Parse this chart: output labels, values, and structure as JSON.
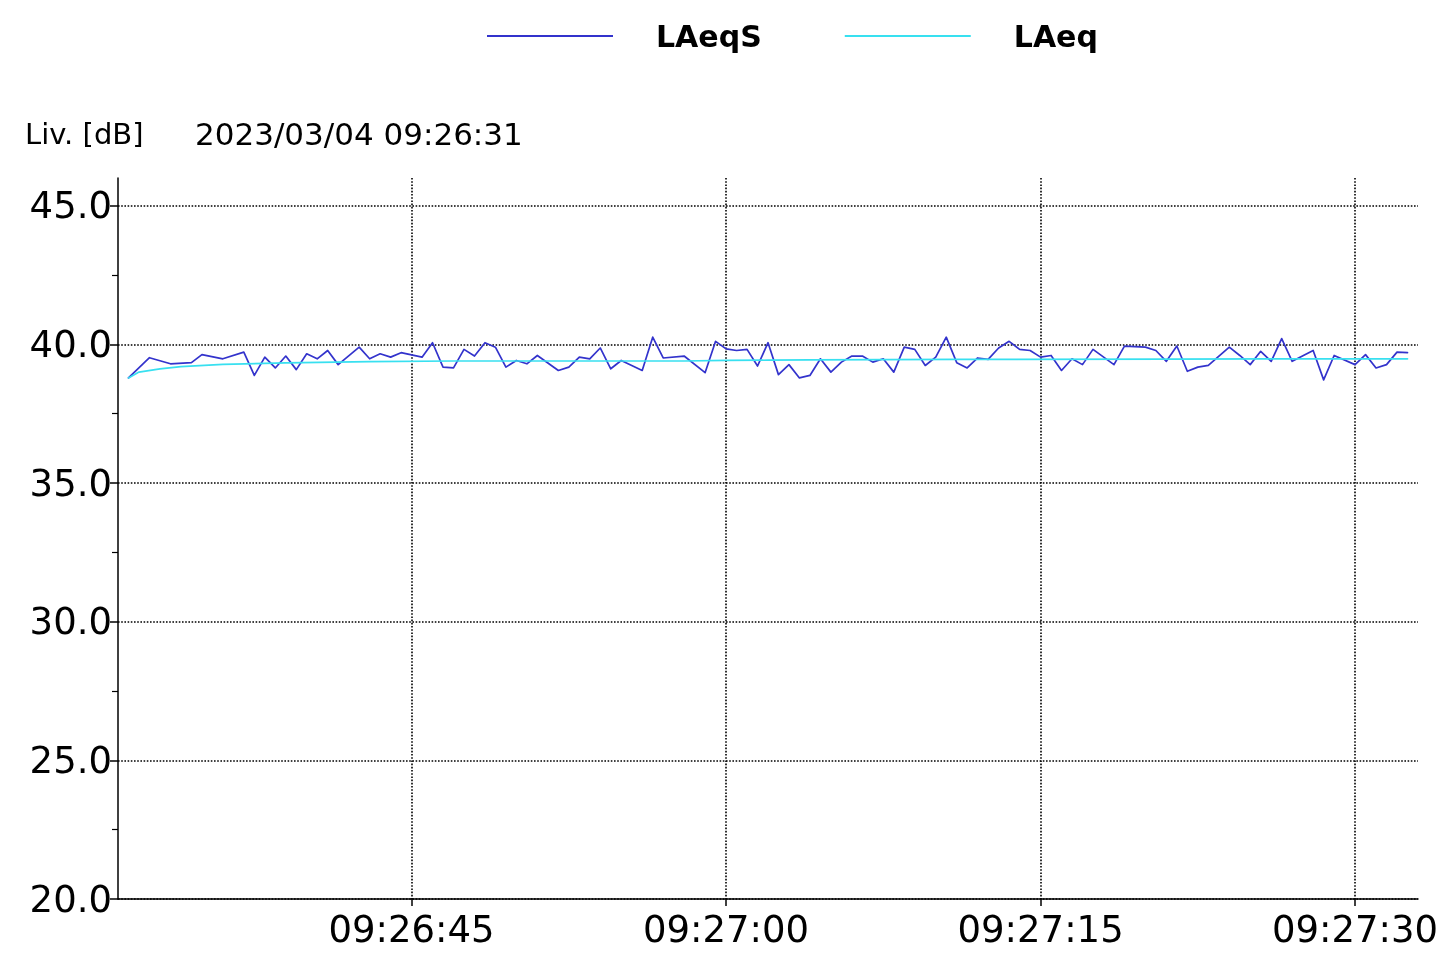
{
  "chart_data": {
    "type": "line",
    "ylabel": "Liv. [dB]",
    "subtitle": "2023/03/04 09:26:31",
    "xlim": [
      9.441944,
      9.459167
    ],
    "xticks": [
      {
        "value": 9.445833,
        "label": "09:26:45"
      },
      {
        "value": 9.45,
        "label": "09:27:00"
      },
      {
        "value": 9.454167,
        "label": "09:27:15"
      },
      {
        "value": 9.458333,
        "label": "09:27:30"
      }
    ],
    "ylim": [
      20,
      46
    ],
    "yticks": [
      {
        "value": 20,
        "label": "20.0"
      },
      {
        "value": 22.5,
        "label": null
      },
      {
        "value": 25,
        "label": "25.0"
      },
      {
        "value": 27.5,
        "label": null
      },
      {
        "value": 30,
        "label": "30.0"
      },
      {
        "value": 32.5,
        "label": null
      },
      {
        "value": 35,
        "label": "35.0"
      },
      {
        "value": 37.5,
        "label": null
      },
      {
        "value": 40,
        "label": "40.0"
      },
      {
        "value": 42.5,
        "label": null
      },
      {
        "value": 45,
        "label": "45.0"
      }
    ],
    "grid": true,
    "legend": "top",
    "marker": "none",
    "line_style": "solid",
    "series": [
      {
        "name": "LAeqS",
        "color": "#3333cc",
        "x": [
          9.442083,
          9.442361,
          9.442639,
          9.442917,
          9.443056,
          9.443333,
          9.443611,
          9.44375,
          9.443889,
          9.444028,
          9.444167,
          9.444306,
          9.444444,
          9.444583,
          9.444722,
          9.444861,
          9.445139,
          9.445278,
          9.445417,
          9.445556,
          9.445694,
          9.445972,
          9.446111,
          9.44625,
          9.446389,
          9.446528,
          9.446667,
          9.446806,
          9.446944,
          9.447083,
          9.447222,
          9.447361,
          9.4475,
          9.447778,
          9.447917,
          9.448056,
          9.448194,
          9.448333,
          9.448472,
          9.448611,
          9.448889,
          9.449028,
          9.449167,
          9.449444,
          9.449722,
          9.449861,
          9.45,
          9.450139,
          9.450278,
          9.450417,
          9.450556,
          9.450694,
          9.450833,
          9.450972,
          9.451111,
          9.45125,
          9.451389,
          9.451528,
          9.451667,
          9.451806,
          9.451944,
          9.452083,
          9.452222,
          9.452361,
          9.4525,
          9.452639,
          9.452778,
          9.452917,
          9.453056,
          9.453194,
          9.453333,
          9.453472,
          9.453611,
          9.45375,
          9.453889,
          9.454028,
          9.454167,
          9.454306,
          9.454444,
          9.454583,
          9.454722,
          9.454861,
          9.455139,
          9.455278,
          9.455556,
          9.455694,
          9.455833,
          9.455972,
          9.456111,
          9.45625,
          9.456389,
          9.456667,
          9.456806,
          9.456944,
          9.457083,
          9.457222,
          9.457361,
          9.4575,
          9.457778,
          9.457917,
          9.458056,
          9.458333,
          9.458472,
          9.458611,
          9.45875,
          9.458889,
          9.459028
        ],
        "values": [
          38.79,
          39.52,
          39.3,
          39.34,
          39.63,
          39.48,
          39.72,
          38.88,
          39.54,
          39.15,
          39.58,
          39.09,
          39.66,
          39.48,
          39.78,
          39.27,
          39.9,
          39.48,
          39.66,
          39.54,
          39.7,
          39.54,
          40.06,
          39.18,
          39.15,
          39.82,
          39.58,
          40.06,
          39.9,
          39.18,
          39.42,
          39.3,
          39.6,
          39.06,
          39.18,
          39.54,
          39.48,
          39.87,
          39.12,
          39.42,
          39.06,
          40.26,
          39.51,
          39.58,
          38.98,
          40.11,
          39.84,
          39.78,
          39.82,
          39.22,
          40.06,
          38.91,
          39.27,
          38.79,
          38.88,
          39.48,
          39.0,
          39.36,
          39.58,
          39.58,
          39.36,
          39.48,
          39.0,
          39.9,
          39.82,
          39.24,
          39.54,
          40.26,
          39.34,
          39.15,
          39.51,
          39.46,
          39.87,
          40.11,
          39.82,
          39.78,
          39.54,
          39.6,
          39.06,
          39.48,
          39.27,
          39.82,
          39.27,
          39.94,
          39.9,
          39.78,
          39.39,
          39.94,
          39.03,
          39.18,
          39.24,
          39.9,
          39.6,
          39.27,
          39.75,
          39.39,
          40.21,
          39.39,
          39.78,
          38.72,
          39.6,
          39.27,
          39.63,
          39.15,
          39.27,
          39.72,
          39.7
        ]
      },
      {
        "name": "LAeq",
        "color": "#38e0f0",
        "x": [
          9.442083,
          9.442222,
          9.4425,
          9.442778,
          9.443333,
          9.444167,
          9.445278,
          9.446389,
          9.448056,
          9.449444,
          9.45,
          9.450556,
          9.451111,
          9.453056,
          9.455833,
          9.459028
        ],
        "values": [
          38.79,
          39.0,
          39.12,
          39.2,
          39.28,
          39.33,
          39.38,
          39.4,
          39.4,
          39.4,
          39.42,
          39.43,
          39.44,
          39.46,
          39.47,
          39.48
        ]
      }
    ]
  }
}
